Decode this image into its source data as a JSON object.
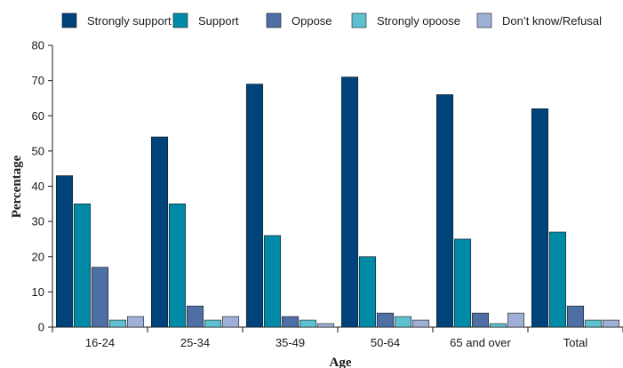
{
  "chart_data": {
    "type": "bar",
    "xlabel": "Age",
    "ylabel": "Percentage",
    "ylim": [
      0,
      80
    ],
    "yticks": [
      0,
      10,
      20,
      30,
      40,
      50,
      60,
      70,
      80
    ],
    "categories": [
      "16-24",
      "25-34",
      "35-49",
      "50-64",
      "65 and over",
      "Total"
    ],
    "series": [
      {
        "name": "Strongly support",
        "color": "#00427a",
        "values": [
          43,
          54,
          69,
          71,
          66,
          62
        ]
      },
      {
        "name": "Support",
        "color": "#008aa5",
        "values": [
          35,
          35,
          26,
          20,
          25,
          27
        ]
      },
      {
        "name": "Oppose",
        "color": "#4d6fa3",
        "values": [
          17,
          6,
          3,
          4,
          4,
          6
        ]
      },
      {
        "name": "Strongly opoose",
        "color": "#5fc1cf",
        "values": [
          2,
          2,
          2,
          3,
          1,
          2
        ]
      },
      {
        "name": "Don’t know/Refusal",
        "color": "#9fb0d6",
        "values": [
          3,
          3,
          1,
          2,
          4,
          2
        ]
      }
    ],
    "legend_position": "top",
    "grid": false
  }
}
